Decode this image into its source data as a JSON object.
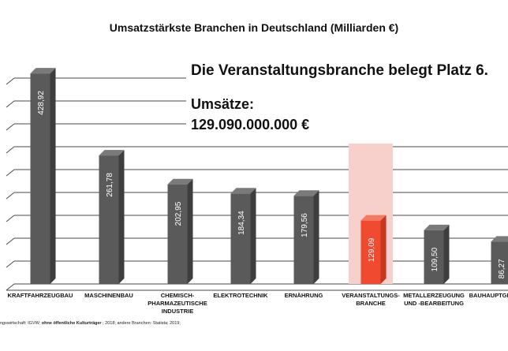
{
  "chart_data": {
    "type": "bar",
    "title": "Umsatzstärkste Branchen in Deutschland (Milliarden €)",
    "headline": "Die Veranstaltungsbranche belegt Platz 6.",
    "revenue_label": "Umsätze:",
    "revenue_value": "129.090.000.000 €",
    "categories": [
      [
        "KRAFTFAHRZEUGBAU"
      ],
      [
        "MASCHINENBAU"
      ],
      [
        "CHEMISCH-",
        "PHARMAZEUTISCHE",
        "INDUSTRIE"
      ],
      [
        "ELEKTROTECHNIK"
      ],
      [
        "ERNÄHRUNG"
      ],
      [
        "VERANSTALTUNGS-",
        "BRANCHE"
      ],
      [
        "METALLERZEUGUNG",
        "UND -BEARBEITUNG"
      ],
      [
        "BAUHAUPTGEWERBE"
      ]
    ],
    "values": [
      428.92,
      261.78,
      202.95,
      184.34,
      179.56,
      129.09,
      109.5,
      86.27
    ],
    "value_labels": [
      "428,92",
      "261,78",
      "202,95",
      "184,34",
      "179,56",
      "129,09",
      "109,50",
      "86,27"
    ],
    "highlight_index": 5,
    "ylim": [
      0,
      450
    ],
    "grid": true,
    "colors": {
      "bar": "#5a5a5a",
      "bar_side": "#3e3e3e",
      "bar_top": "#7a7a7a",
      "highlight": "#f04a30",
      "highlight_side": "#c7361f",
      "highlight_top": "#f47a64",
      "highlight_band": "#f8d0cb",
      "grid": "#4a4a4a",
      "text": "#111111"
    },
    "source_prefix": "ngswirtschaft: IGVW;",
    "source_bold": "ohne öffentliche Kulturträger",
    "source_suffix": "; 2018; andere Branchen: Statista; 2019;"
  }
}
